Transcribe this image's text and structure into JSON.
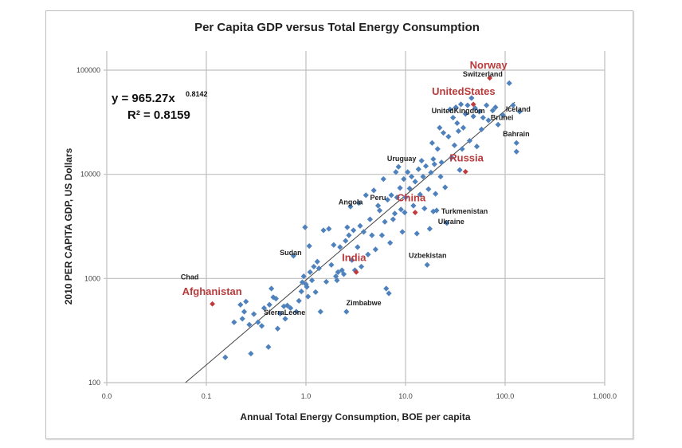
{
  "chart_data": {
    "type": "scatter",
    "title": "Per Capita GDP versus Total Energy Consumption",
    "xlabel": "Annual Total Energy Consumption, BOE per capita",
    "ylabel": "2010 PER CAPITA GDP, US Dollars",
    "xscale": "log",
    "yscale": "log",
    "xlim": [
      0.01,
      1000
    ],
    "ylim": [
      100,
      100000
    ],
    "x_tick_labels": [
      "0.0",
      "0.1",
      "1.0",
      "10.0",
      "100.0",
      "1,000.0"
    ],
    "x_tick_values": [
      0.01,
      0.1,
      1,
      10,
      100,
      1000
    ],
    "y_tick_labels": [
      "100",
      "1000",
      "10000",
      "100000"
    ],
    "y_tick_values": [
      100,
      1000,
      10000,
      100000
    ],
    "grid": true,
    "legend": "none",
    "trendline": {
      "type": "power",
      "coefficient": 965.27,
      "exponent": 0.8142,
      "equation_text": "y = 965.27x",
      "exponent_text": "0.8142",
      "r2_text": "R² = 0.8159"
    },
    "colors": {
      "points": "#4f81bd",
      "highlight": "#c0393b",
      "grid": "#bfbfbf",
      "trend": "#404040"
    },
    "highlighted": [
      {
        "name": "Norway",
        "x": 70,
        "y": 84000
      },
      {
        "name": "UnitedStates",
        "x": 48,
        "y": 47000
      },
      {
        "name": "Russia",
        "x": 40,
        "y": 10600
      },
      {
        "name": "China",
        "x": 12.5,
        "y": 4300
      },
      {
        "name": "India",
        "x": 3.2,
        "y": 1150
      },
      {
        "name": "Afghanistan",
        "x": 0.115,
        "y": 570
      }
    ],
    "annotations": [
      {
        "name": "Switzerland",
        "x": 42,
        "y": 68000
      },
      {
        "name": "UnitedKingdom",
        "x": 30,
        "y": 38000
      },
      {
        "name": "Iceland",
        "x": 120,
        "y": 38000
      },
      {
        "name": "Brunei",
        "x": 80,
        "y": 32000
      },
      {
        "name": "Bahrain",
        "x": 110,
        "y": 22000
      },
      {
        "name": "Uruguay",
        "x": 8,
        "y": 12500
      },
      {
        "name": "Angola",
        "x": 2.6,
        "y": 4800
      },
      {
        "name": "Peru",
        "x": 5.2,
        "y": 5100
      },
      {
        "name": "Turkmenistan",
        "x": 27,
        "y": 4200
      },
      {
        "name": "Ukraine",
        "x": 22,
        "y": 3400
      },
      {
        "name": "Sudan",
        "x": 0.85,
        "y": 1700
      },
      {
        "name": "Uzbekistan",
        "x": 15,
        "y": 1600
      },
      {
        "name": "Chad",
        "x": 0.08,
        "y": 850
      },
      {
        "name": "Zimbabwe",
        "x": 3,
        "y": 560
      },
      {
        "name": "SierraLeone",
        "x": 0.6,
        "y": 440
      }
    ],
    "points": [
      [
        0.155,
        175
      ],
      [
        0.19,
        380
      ],
      [
        0.22,
        560
      ],
      [
        0.24,
        480
      ],
      [
        0.23,
        410
      ],
      [
        0.25,
        600
      ],
      [
        0.27,
        360
      ],
      [
        0.3,
        455
      ],
      [
        0.28,
        190
      ],
      [
        0.33,
        380
      ],
      [
        0.36,
        350
      ],
      [
        0.38,
        520
      ],
      [
        0.42,
        220
      ],
      [
        0.43,
        560
      ],
      [
        0.45,
        800
      ],
      [
        0.47,
        660
      ],
      [
        0.5,
        640
      ],
      [
        0.52,
        330
      ],
      [
        0.55,
        460
      ],
      [
        0.6,
        540
      ],
      [
        0.65,
        550
      ],
      [
        0.7,
        520
      ],
      [
        0.75,
        1650
      ],
      [
        0.8,
        480
      ],
      [
        0.85,
        610
      ],
      [
        0.9,
        750
      ],
      [
        0.92,
        920
      ],
      [
        0.95,
        1050
      ],
      [
        1.0,
        880
      ],
      [
        1.02,
        830
      ],
      [
        1.05,
        670
      ],
      [
        1.1,
        1150
      ],
      [
        1.15,
        960
      ],
      [
        1.2,
        1300
      ],
      [
        1.25,
        740
      ],
      [
        1.35,
        1250
      ],
      [
        1.4,
        480
      ],
      [
        1.5,
        2900
      ],
      [
        1.6,
        930
      ],
      [
        1.7,
        3000
      ],
      [
        1.8,
        1350
      ],
      [
        1.9,
        2100
      ],
      [
        2.0,
        1050
      ],
      [
        2.1,
        1150
      ],
      [
        2.2,
        2000
      ],
      [
        2.3,
        1200
      ],
      [
        2.4,
        1100
      ],
      [
        2.5,
        2300
      ],
      [
        2.55,
        480
      ],
      [
        2.6,
        3100
      ],
      [
        2.7,
        2600
      ],
      [
        2.8,
        4900
      ],
      [
        2.9,
        1500
      ],
      [
        3.0,
        2900
      ],
      [
        3.1,
        1200
      ],
      [
        3.3,
        2000
      ],
      [
        3.5,
        3200
      ],
      [
        3.6,
        1300
      ],
      [
        3.8,
        2800
      ],
      [
        4.0,
        6300
      ],
      [
        4.2,
        1700
      ],
      [
        4.4,
        3700
      ],
      [
        4.6,
        2600
      ],
      [
        4.8,
        7000
      ],
      [
        5.0,
        1900
      ],
      [
        5.3,
        5000
      ],
      [
        5.5,
        4500
      ],
      [
        5.8,
        2600
      ],
      [
        6.0,
        9000
      ],
      [
        6.2,
        3500
      ],
      [
        6.4,
        800
      ],
      [
        6.6,
        5700
      ],
      [
        6.8,
        720
      ],
      [
        7.0,
        2200
      ],
      [
        7.2,
        6300
      ],
      [
        7.5,
        3700
      ],
      [
        7.8,
        4200
      ],
      [
        8.0,
        10500
      ],
      [
        8.2,
        6000
      ],
      [
        8.5,
        11800
      ],
      [
        8.8,
        7400
      ],
      [
        9.0,
        4600
      ],
      [
        9.3,
        2800
      ],
      [
        9.6,
        9000
      ],
      [
        10,
        6000
      ],
      [
        10.5,
        10500
      ],
      [
        11,
        7300
      ],
      [
        11.5,
        9500
      ],
      [
        12,
        5000
      ],
      [
        12.5,
        8500
      ],
      [
        13,
        2700
      ],
      [
        13.5,
        11200
      ],
      [
        14,
        6400
      ],
      [
        14.5,
        13500
      ],
      [
        15,
        9500
      ],
      [
        15.5,
        4700
      ],
      [
        16,
        12000
      ],
      [
        16.5,
        1350
      ],
      [
        17,
        7200
      ],
      [
        17.5,
        3000
      ],
      [
        18,
        10400
      ],
      [
        18.5,
        20000
      ],
      [
        19,
        14000
      ],
      [
        19.5,
        12500
      ],
      [
        20,
        6500
      ],
      [
        20.5,
        4500
      ],
      [
        21,
        17500
      ],
      [
        22,
        28000
      ],
      [
        22.5,
        9500
      ],
      [
        23,
        13000
      ],
      [
        24,
        25000
      ],
      [
        25,
        7500
      ],
      [
        26,
        3400
      ],
      [
        27,
        23000
      ],
      [
        28,
        42000
      ],
      [
        29,
        14500
      ],
      [
        30,
        35000
      ],
      [
        31,
        19000
      ],
      [
        32,
        44000
      ],
      [
        33,
        31000
      ],
      [
        34,
        26000
      ],
      [
        35,
        11000
      ],
      [
        36,
        47000
      ],
      [
        37,
        17500
      ],
      [
        38,
        28000
      ],
      [
        40,
        38000
      ],
      [
        42,
        46000
      ],
      [
        44,
        21000
      ],
      [
        46,
        54000
      ],
      [
        48,
        36000
      ],
      [
        50,
        43000
      ],
      [
        52,
        18500
      ],
      [
        55,
        40000
      ],
      [
        58,
        27000
      ],
      [
        60,
        35000
      ],
      [
        65,
        46000
      ],
      [
        68,
        33000
      ],
      [
        75,
        41000
      ],
      [
        80,
        44000
      ],
      [
        85,
        30000
      ],
      [
        95,
        37000
      ],
      [
        110,
        75000
      ],
      [
        120,
        46000
      ],
      [
        130,
        20000
      ],
      [
        130,
        16500
      ],
      [
        140,
        40000
      ],
      [
        1.3,
        1450
      ],
      [
        0.62,
        410
      ],
      [
        1.08,
        2050
      ],
      [
        2.05,
        960
      ],
      [
        0.98,
        3100
      ],
      [
        3.4,
        5300
      ],
      [
        9.8,
        4300
      ],
      [
        19,
        4400
      ]
    ]
  }
}
